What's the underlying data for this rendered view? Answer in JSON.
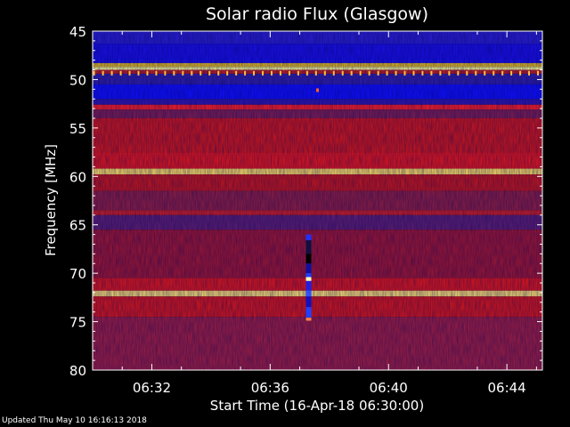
{
  "chart_data": {
    "type": "heatmap",
    "title": "Solar radio Flux (Glasgow)",
    "xlabel": "Start Time (16-Apr-18 06:30:00)",
    "ylabel": "Frequency [MHz]",
    "xlim_minutes": [
      0,
      15.2
    ],
    "ylim": [
      45,
      80
    ],
    "x_ticks": [
      "06:32",
      "06:36",
      "06:40",
      "06:44"
    ],
    "y_ticks": [
      "45",
      "50",
      "55",
      "60",
      "65",
      "70",
      "75",
      "80"
    ],
    "y_tick_values": [
      45,
      50,
      55,
      60,
      65,
      70,
      75,
      80
    ],
    "x_tick_values_minutes": [
      2,
      6,
      10,
      14
    ],
    "bands": [
      {
        "from": 45.0,
        "to": 46.3,
        "color": "#2a1fd0"
      },
      {
        "from": 46.3,
        "to": 48.3,
        "color": "#1a10e8"
      },
      {
        "from": 48.3,
        "to": 48.7,
        "color": "#e8c020"
      },
      {
        "from": 48.7,
        "to": 49.0,
        "color": "#ffff90"
      },
      {
        "from": 49.0,
        "to": 49.4,
        "color": "#c02020"
      },
      {
        "from": 49.4,
        "to": 50.5,
        "color": "#3020a8"
      },
      {
        "from": 50.5,
        "to": 52.0,
        "color": "#1010ff"
      },
      {
        "from": 52.0,
        "to": 52.6,
        "color": "#3018b0"
      },
      {
        "from": 52.6,
        "to": 53.1,
        "color": "#ff2020"
      },
      {
        "from": 53.1,
        "to": 54.0,
        "color": "#802050"
      },
      {
        "from": 54.0,
        "to": 57.5,
        "color": "#d01818"
      },
      {
        "from": 57.5,
        "to": 59.2,
        "color": "#e81818"
      },
      {
        "from": 59.2,
        "to": 59.8,
        "color": "#ffe060"
      },
      {
        "from": 59.8,
        "to": 61.5,
        "color": "#c81818"
      },
      {
        "from": 61.5,
        "to": 63.5,
        "color": "#902040"
      },
      {
        "from": 63.5,
        "to": 64.0,
        "color": "#d02020"
      },
      {
        "from": 64.0,
        "to": 65.5,
        "color": "#602070"
      },
      {
        "from": 65.5,
        "to": 70.5,
        "color": "#a01830"
      },
      {
        "from": 70.5,
        "to": 71.8,
        "color": "#e01818"
      },
      {
        "from": 71.8,
        "to": 72.4,
        "color": "#ffe070"
      },
      {
        "from": 72.4,
        "to": 74.5,
        "color": "#d81818"
      },
      {
        "from": 74.5,
        "to": 80.0,
        "color": "#a02040"
      }
    ],
    "burst": {
      "time_minutes": 7.3,
      "segments": [
        {
          "from": 66.0,
          "to": 66.6,
          "color": "#2030ff"
        },
        {
          "from": 66.6,
          "to": 68.0,
          "color": "#101040"
        },
        {
          "from": 68.0,
          "to": 69.0,
          "color": "#000000"
        },
        {
          "from": 69.0,
          "to": 70.0,
          "color": "#1010a0"
        },
        {
          "from": 70.0,
          "to": 70.4,
          "color": "#2040ff"
        },
        {
          "from": 70.4,
          "to": 70.8,
          "color": "#ffffc0"
        },
        {
          "from": 70.8,
          "to": 71.8,
          "color": "#2020e0"
        },
        {
          "from": 71.8,
          "to": 72.4,
          "color": "#3050ff"
        },
        {
          "from": 72.4,
          "to": 73.5,
          "color": "#1010c0"
        },
        {
          "from": 73.5,
          "to": 74.6,
          "color": "#2040ff"
        },
        {
          "from": 74.6,
          "to": 74.9,
          "color": "#ff8040"
        }
      ]
    },
    "dot": {
      "time_minutes": 7.6,
      "freq": 51.1,
      "color": "#ff6020"
    },
    "tick_row": {
      "freq": 49.3,
      "color": "#ffc040",
      "interval_minutes": 0.3
    }
  },
  "footer": "Updated Thu May 10 16:16:13 2018"
}
